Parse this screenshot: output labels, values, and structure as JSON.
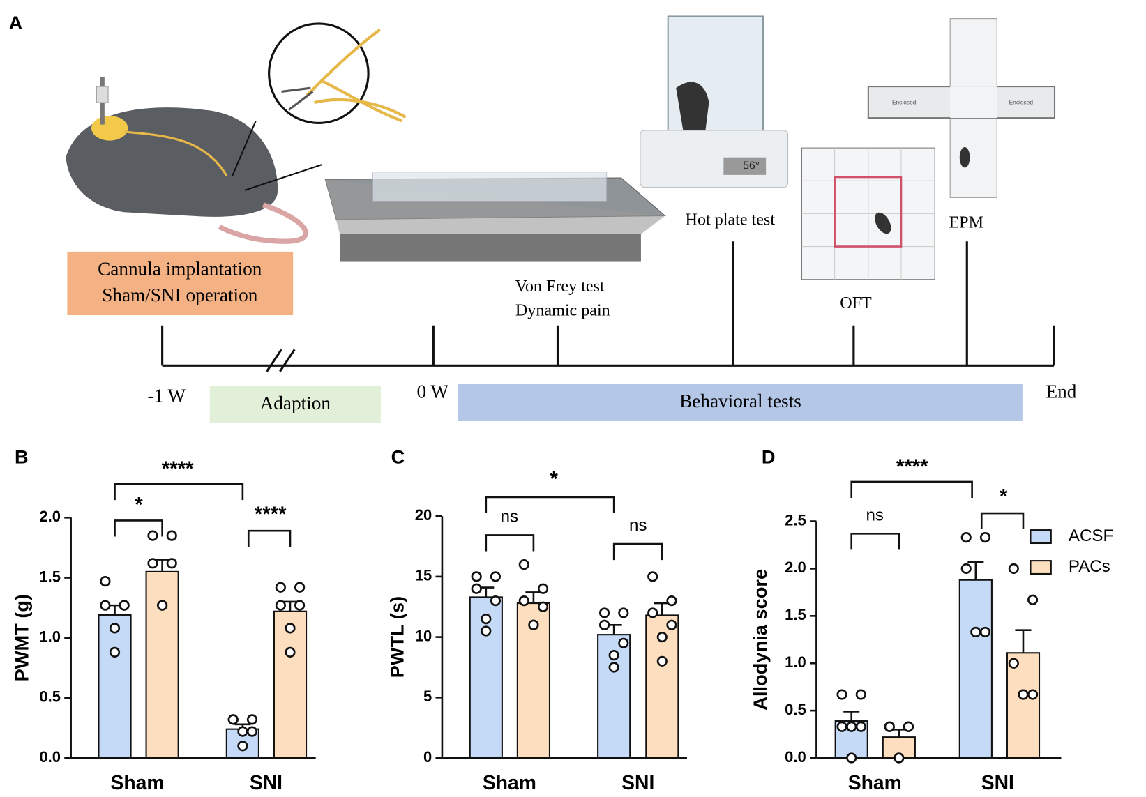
{
  "schematic": {
    "panel": "A",
    "cannula": "Cannula implantation",
    "operation": "Sham/SNI operation",
    "von_frey": "Von Frey test",
    "dynamic": "Dynamic pain",
    "hot_plate": "Hot plate test",
    "temperature": "56°",
    "oft": "OFT",
    "epm": "EPM",
    "enclosed_left": "Enclosed",
    "enclosed_right": "Enclosed",
    "minus_one": "-1 W",
    "adaption": "Adaption",
    "zero": "0 W",
    "behavioral": "Behavioral tests",
    "end": "End"
  },
  "chart_data": [
    {
      "type": "bar",
      "panel": "B",
      "ylabel": "PWMT (g)",
      "categories": [
        "Sham",
        "SNI"
      ],
      "ylim": [
        0,
        2.0
      ],
      "yticks": [
        {
          "value": 0,
          "label": "0.0"
        },
        0.5,
        {
          "value": 1,
          "label": "1.0"
        },
        1.5,
        {
          "value": 2,
          "label": "2.0"
        }
      ],
      "series": [
        {
          "name": "ACSF",
          "color": "#c5daf6",
          "values": [
            1.19,
            0.24
          ],
          "errors": [
            0.08,
            0.04
          ],
          "points": [
            [
              1.47,
              1.27,
              1.27,
              1.27,
              1.08,
              0.88
            ],
            [
              0.32,
              0.32,
              0.32,
              0.22,
              0.22,
              0.1
            ]
          ]
        },
        {
          "name": "PACs",
          "color": "#fddfbf",
          "values": [
            1.55,
            1.22
          ],
          "errors": [
            0.1,
            0.08
          ],
          "points": [
            [
              1.85,
              1.85,
              1.62,
              1.62,
              1.27,
              1.27
            ],
            [
              1.42,
              1.42,
              1.27,
              1.27,
              1.08,
              0.88
            ]
          ]
        }
      ],
      "annotations": [
        "****",
        "*",
        "****"
      ]
    },
    {
      "type": "bar",
      "panel": "C",
      "ylabel": "PWTL (s)",
      "categories": [
        "Sham",
        "SNI"
      ],
      "ylim": [
        0,
        20
      ],
      "yticks": [
        0,
        5,
        10,
        15,
        20
      ],
      "series": [
        {
          "name": "ACSF",
          "color": "#c5daf6",
          "values": [
            13.3,
            10.2
          ],
          "errors": [
            0.8,
            0.8
          ],
          "points": [
            [
              15,
              15,
              14,
              13,
              11.5,
              10.5
            ],
            [
              12,
              12,
              11,
              9.5,
              8.5,
              7.5
            ]
          ]
        },
        {
          "name": "PACs",
          "color": "#fddfbf",
          "values": [
            12.8,
            11.8
          ],
          "errors": [
            0.9,
            1.0
          ],
          "points": [
            [
              16,
              14,
              13,
              12.5,
              11,
              11
            ],
            [
              15,
              13,
              12,
              11,
              10,
              8
            ]
          ]
        }
      ],
      "annotations": [
        "*",
        "ns",
        "ns"
      ]
    },
    {
      "type": "bar",
      "panel": "D",
      "ylabel": "Allodynia score",
      "categories": [
        "Sham",
        "SNI"
      ],
      "ylim": [
        0,
        2.5
      ],
      "yticks": [
        {
          "value": 0,
          "label": "0.0"
        },
        0.5,
        {
          "value": 1,
          "label": "1.0"
        },
        1.5,
        {
          "value": 2,
          "label": "2.0"
        },
        2.5
      ],
      "legend": "right",
      "series": [
        {
          "name": "ACSF",
          "color": "#c5daf6",
          "values": [
            0.39,
            1.88
          ],
          "errors": [
            0.1,
            0.19
          ],
          "points": [
            [
              0.67,
              0.67,
              0.33,
              0.33,
              0.33,
              0
            ],
            [
              2.33,
              2.33,
              2,
              1.33,
              1.33,
              1.33
            ]
          ]
        },
        {
          "name": "PACs",
          "color": "#fddfbf",
          "values": [
            0.22,
            1.11
          ],
          "errors": [
            0.08,
            0.24
          ],
          "points": [
            [
              0.33,
              0.33,
              0.33,
              0.33,
              0,
              0
            ],
            [
              2,
              1.67,
              1,
              0.67,
              0.67,
              0.67
            ]
          ]
        }
      ],
      "annotations": [
        "****",
        "ns",
        "*"
      ]
    }
  ]
}
